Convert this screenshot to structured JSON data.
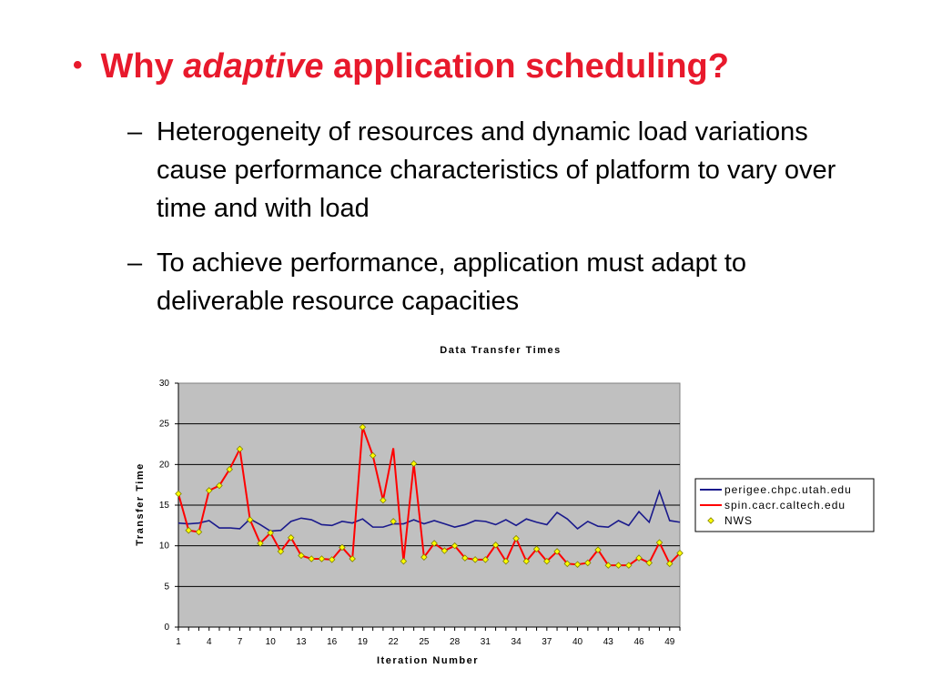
{
  "slide": {
    "bullet_prefix": "Why",
    "bullet_emph": "adaptive",
    "bullet_suffix": "application scheduling?",
    "sub_bullets": [
      "Heterogeneity of resources and dynamic load variations cause performance characteristics of platform to vary over time and with load",
      "To achieve performance, application must adapt to deliverable resource capacities"
    ]
  },
  "colors": {
    "title": "#e8192c",
    "plot_bg": "#c0c0c0",
    "series_blue": "#1a1a8c",
    "series_red": "#ff0000",
    "marker_nws": "#ffff00"
  },
  "chart_data": {
    "type": "line",
    "title": "Data Transfer Times",
    "xlabel": "Iteration Number",
    "ylabel": "Transfer Time",
    "ylim": [
      0,
      30
    ],
    "yticks": [
      0,
      5,
      10,
      15,
      20,
      25,
      30
    ],
    "xticks": [
      1,
      4,
      7,
      10,
      13,
      16,
      19,
      22,
      25,
      28,
      31,
      34,
      37,
      40,
      43,
      46,
      49
    ],
    "grid": "horizontal",
    "legend_position": "right",
    "x": [
      1,
      2,
      3,
      4,
      5,
      6,
      7,
      8,
      9,
      10,
      11,
      12,
      13,
      14,
      15,
      16,
      17,
      18,
      19,
      20,
      21,
      22,
      23,
      24,
      25,
      26,
      27,
      28,
      29,
      30,
      31,
      32,
      33,
      34,
      35,
      36,
      37,
      38,
      39,
      40,
      41,
      42,
      43,
      44,
      45,
      46,
      47,
      48,
      49,
      50
    ],
    "series": [
      {
        "name": "perigee.chpc.utah.edu",
        "marker": "none",
        "values": [
          12.8,
          12.7,
          12.8,
          13.1,
          12.2,
          12.2,
          12.1,
          13.3,
          12.6,
          11.8,
          11.9,
          13.0,
          13.4,
          13.2,
          12.6,
          12.5,
          13.0,
          12.8,
          13.3,
          12.3,
          12.3,
          12.7,
          12.7,
          13.2,
          12.7,
          13.1,
          12.7,
          12.3,
          12.6,
          13.1,
          13.0,
          12.6,
          13.2,
          12.5,
          13.3,
          12.9,
          12.6,
          14.1,
          13.3,
          12.1,
          13.0,
          12.4,
          12.3,
          13.1,
          12.5,
          14.2,
          12.9,
          16.7,
          13.1,
          12.9
        ]
      },
      {
        "name": "spin.cacr.caltech.edu",
        "marker": "none",
        "values": [
          16.4,
          11.9,
          11.7,
          16.8,
          17.4,
          19.4,
          21.9,
          13.2,
          10.3,
          11.6,
          9.3,
          11.0,
          8.8,
          8.4,
          8.4,
          8.3,
          9.8,
          8.4,
          24.6,
          21.1,
          15.6,
          22.0,
          8.1,
          20.1,
          8.6,
          10.3,
          9.4,
          10.0,
          8.5,
          8.3,
          8.3,
          10.1,
          8.1,
          10.9,
          8.1,
          9.6,
          8.1,
          9.3,
          7.8,
          7.7,
          7.9,
          9.5,
          7.6,
          7.6,
          7.6,
          8.5,
          7.9,
          10.4,
          7.8,
          9.1
        ]
      },
      {
        "name": "NWS",
        "marker": "diamond",
        "values": [
          16.4,
          11.9,
          11.7,
          16.8,
          17.4,
          19.4,
          21.9,
          13.2,
          10.3,
          11.6,
          9.3,
          11.0,
          8.8,
          8.4,
          8.4,
          8.3,
          9.8,
          8.4,
          24.6,
          21.1,
          15.6,
          13.0,
          8.1,
          20.1,
          8.6,
          10.3,
          9.4,
          10.0,
          8.5,
          8.3,
          8.3,
          10.1,
          8.1,
          10.9,
          8.1,
          9.6,
          8.1,
          9.3,
          7.8,
          7.7,
          7.9,
          9.5,
          7.6,
          7.6,
          7.6,
          8.5,
          7.9,
          10.4,
          7.8,
          9.1
        ]
      }
    ]
  }
}
